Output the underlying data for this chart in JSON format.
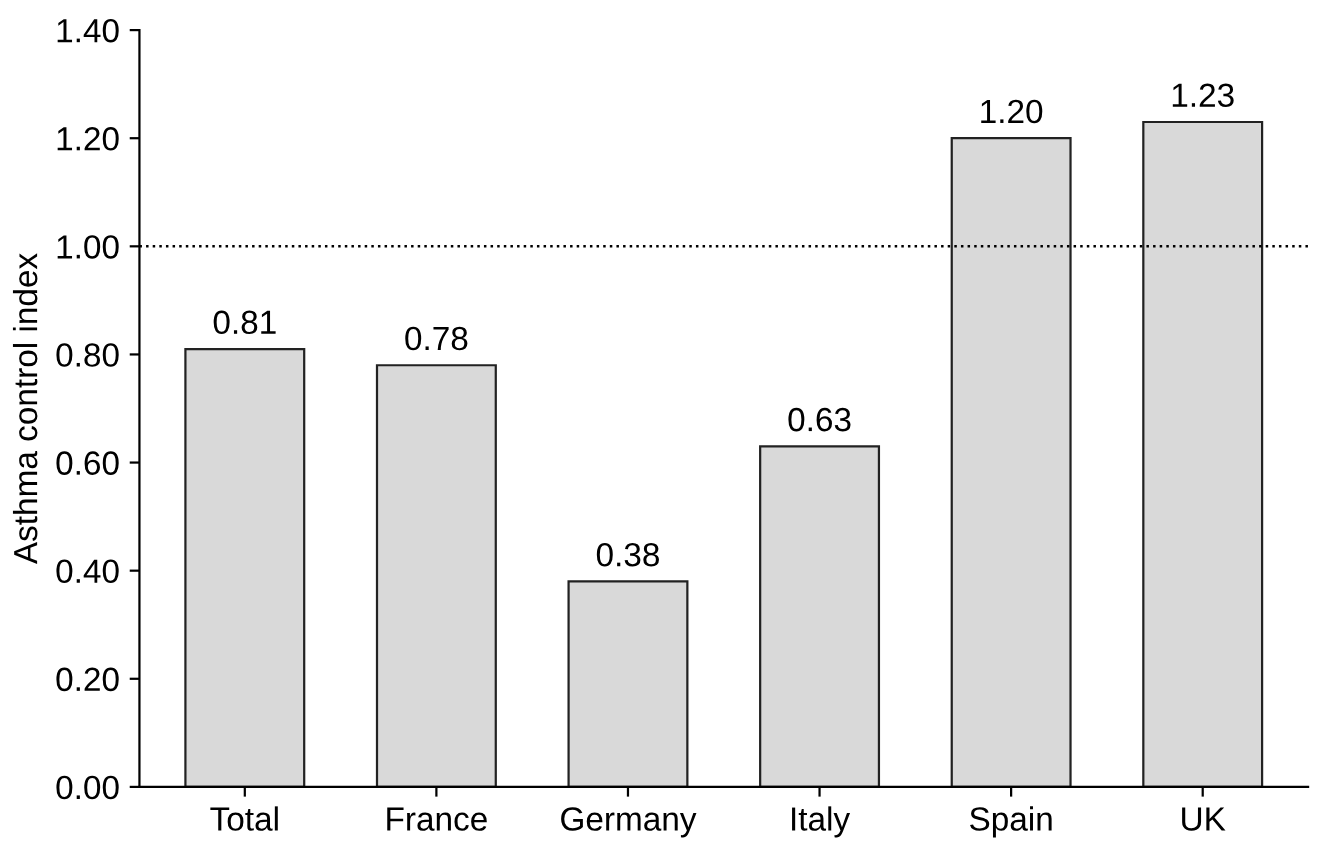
{
  "chart_data": {
    "type": "bar",
    "ylabel": "Asthma control index",
    "categories": [
      "Total",
      "France",
      "Germany",
      "Italy",
      "Spain",
      "UK"
    ],
    "values": [
      0.81,
      0.78,
      0.38,
      0.63,
      1.2,
      1.23
    ],
    "value_labels": [
      "0.81",
      "0.78",
      "0.38",
      "0.63",
      "1.20",
      "1.23"
    ],
    "color": "#d9d9d9",
    "ylim": [
      0,
      1.4
    ],
    "yticks": [
      {
        "value": 0,
        "label": "0.00"
      },
      {
        "value": 0.2,
        "label": "0.20"
      },
      {
        "value": 0.4,
        "label": "0.40"
      },
      {
        "value": 0.6,
        "label": "0.60"
      },
      {
        "value": 0.8,
        "label": "0.80"
      },
      {
        "value": 1.0,
        "label": "1.00"
      },
      {
        "value": 1.2,
        "label": "1.20"
      },
      {
        "value": 1.4,
        "label": "1.40"
      }
    ],
    "ref_lines": [
      {
        "axis": "y",
        "value": 1.0,
        "line_style": "dotted",
        "color": "#000000"
      }
    ],
    "grid": false
  }
}
